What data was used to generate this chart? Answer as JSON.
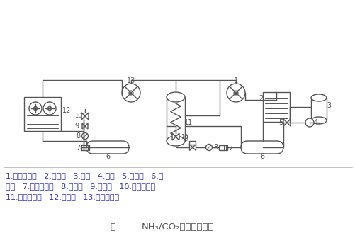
{
  "bg_color": "#ffffff",
  "lc": "#555555",
  "tc": "#3333bb",
  "legend1": "1.高温压缩机   2.冷凝器   3.水筱   4.水泵   5.泄压阀   6.贮",
  "legend2": "液罐   7.干燥过滤器   8.视液镜   9.电磁鄀   10.电子膨胀鄀",
  "legend3": "11.蔭发冷凝器   12.蔭发器   13.低温压缩机",
  "caption": "NH₃/CO₂复叠制冷系统",
  "fig_word": "图"
}
